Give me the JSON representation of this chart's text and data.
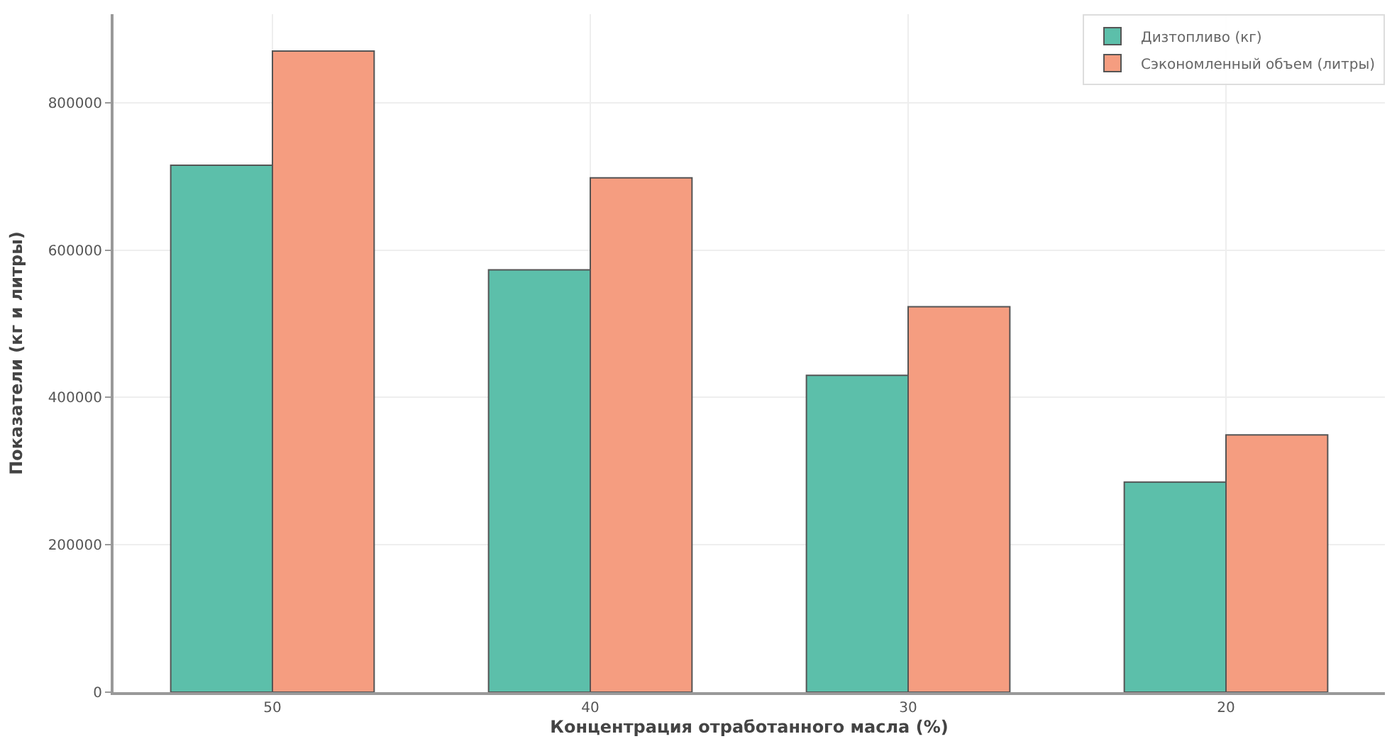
{
  "chart_data": {
    "type": "bar",
    "xlabel": "Концентрация отработанного масла (%)",
    "ylabel": "Показатели (кг и литры)",
    "categories": [
      "50",
      "40",
      "30",
      "20"
    ],
    "series": [
      {
        "name": "Дизтопливо (кг)",
        "color": "#5cbfaa",
        "values": [
          715000,
          573000,
          430000,
          285000
        ]
      },
      {
        "name": "Сэкономленный объем (литры)",
        "color": "#f59d80",
        "values": [
          870000,
          698000,
          523000,
          349000
        ]
      }
    ],
    "ylim": [
      0,
      920000
    ],
    "yticks": [
      0,
      200000,
      400000,
      600000,
      800000
    ],
    "grid": true,
    "legend": "top right"
  }
}
